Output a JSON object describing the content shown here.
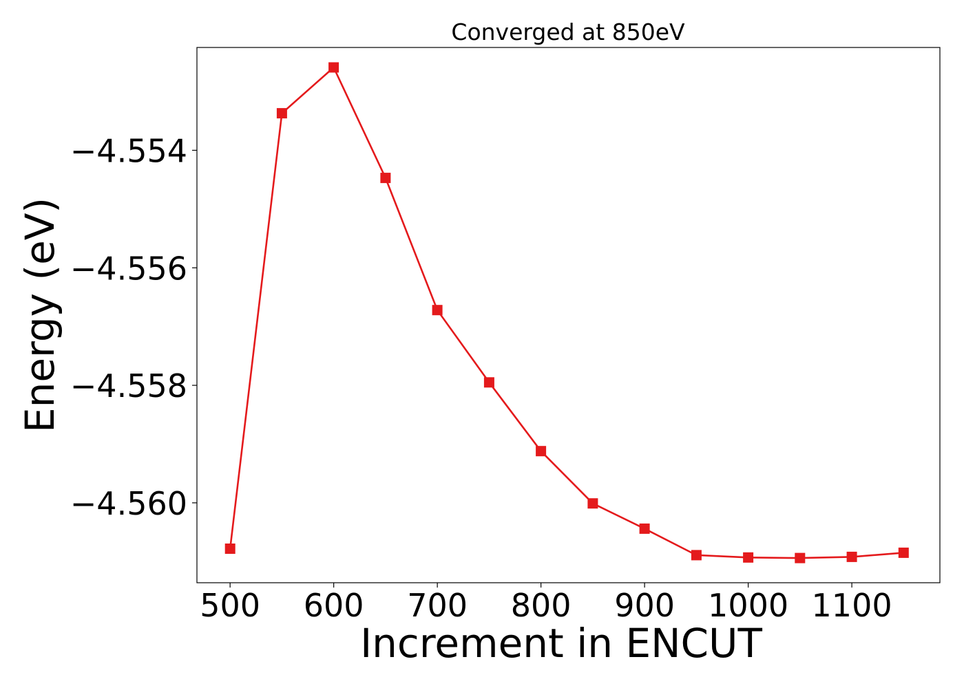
{
  "chart_data": {
    "type": "line",
    "title": "Converged at 850eV",
    "xlabel": "Increment in ENCUT",
    "ylabel": "Energy (eV)",
    "xlim": [
      468,
      1185
    ],
    "ylim": [
      -4.56136,
      -4.55225
    ],
    "x_ticks": [
      500,
      600,
      700,
      800,
      900,
      1000,
      1100
    ],
    "x_tick_labels": [
      "500",
      "600",
      "700",
      "800",
      "900",
      "1000",
      "1100"
    ],
    "y_ticks": [
      -4.554,
      -4.556,
      -4.558,
      -4.56
    ],
    "y_tick_labels": [
      "−4.554",
      "−4.556",
      "−4.558",
      "−4.560"
    ],
    "grid": false,
    "legend": "none",
    "series": [
      {
        "color": "#e41a1c",
        "marker": "square",
        "x": [
          500,
          550,
          600,
          650,
          700,
          750,
          800,
          850,
          900,
          950,
          1000,
          1050,
          1100,
          1150
        ],
        "y": [
          -4.56078,
          -4.55337,
          -4.55259,
          -4.55447,
          -4.55672,
          -4.55795,
          -4.55912,
          -4.56001,
          -4.56044,
          -4.56089,
          -4.56093,
          -4.56094,
          -4.56092,
          -4.56085
        ]
      }
    ]
  }
}
